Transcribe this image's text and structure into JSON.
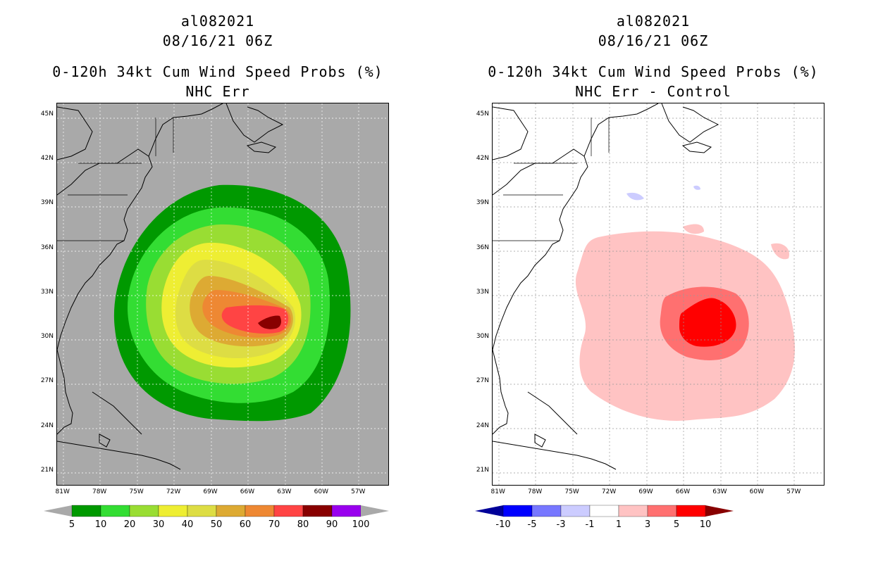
{
  "left_panel": {
    "title_line1": "al082021",
    "title_line2": "08/16/21 06Z",
    "title_line3": "0-120h 34kt Cum Wind Speed Probs (%)",
    "title_line4": "NHC Err",
    "background_color": "#a9a9a9",
    "colorbar": {
      "colors": [
        "#009900",
        "#33dd33",
        "#99dd33",
        "#eeee33",
        "#dddd44",
        "#ddaa33",
        "#ee8833",
        "#ff4444",
        "#880000",
        "#9900ee"
      ],
      "end_color": "#a9a9a9",
      "labels": [
        "5",
        "10",
        "20",
        "30",
        "40",
        "50",
        "60",
        "70",
        "80",
        "90",
        "100"
      ]
    }
  },
  "right_panel": {
    "title_line1": "al082021",
    "title_line2": "08/16/21 06Z",
    "title_line3": "0-120h 34kt Cum Wind Speed Probs (%)",
    "title_line4": "NHC Err - Control",
    "background_color": "#ffffff",
    "colorbar": {
      "colors": [
        "#0000ff",
        "#7777ff",
        "#ccccff",
        "#ffffff",
        "#ffc3c3",
        "#ff7070",
        "#ff0000"
      ],
      "start_color": "#000099",
      "end_color": "#880000",
      "labels": [
        "-10",
        "-5",
        "-3",
        "-1",
        "1",
        "3",
        "5",
        "10"
      ]
    }
  },
  "axes": {
    "lat_labels": [
      "45N",
      "42N",
      "39N",
      "36N",
      "33N",
      "30N",
      "27N",
      "24N",
      "21N"
    ],
    "lat_values": [
      45,
      42,
      39,
      36,
      33,
      30,
      27,
      24,
      21
    ],
    "lon_labels": [
      "81W",
      "78W",
      "75W",
      "72W",
      "69W",
      "66W",
      "63W",
      "60W",
      "57W"
    ],
    "lon_values": [
      -81,
      -78,
      -75,
      -72,
      -69,
      -66,
      -63,
      -60,
      -57
    ],
    "lon_range": [
      -81.5,
      -54.5
    ],
    "lat_range": [
      20.0,
      45.8
    ]
  }
}
